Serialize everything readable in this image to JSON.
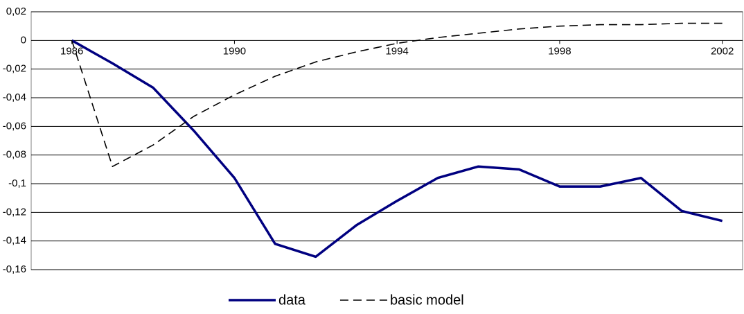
{
  "chart_data": {
    "type": "line",
    "x": [
      1986,
      1987,
      1988,
      1989,
      1990,
      1991,
      1992,
      1993,
      1994,
      1995,
      1996,
      1997,
      1998,
      1999,
      2000,
      2001,
      2002
    ],
    "series": [
      {
        "name": "data",
        "color": "#000080",
        "dash": false,
        "values": [
          0,
          -0.016,
          -0.033,
          -0.063,
          -0.096,
          -0.142,
          -0.151,
          -0.129,
          -0.112,
          -0.096,
          -0.088,
          -0.09,
          -0.102,
          -0.102,
          -0.096,
          -0.119,
          -0.126
        ]
      },
      {
        "name": "basic model",
        "color": "#000000",
        "dash": true,
        "values": [
          0,
          -0.088,
          -0.073,
          -0.053,
          -0.038,
          -0.025,
          -0.015,
          -0.008,
          -0.002,
          0.002,
          0.005,
          0.008,
          0.01,
          0.011,
          0.011,
          0.012,
          0.012
        ]
      }
    ],
    "xlim": [
      1985,
      2002.5
    ],
    "xticks": [
      1986,
      1990,
      1994,
      1998,
      2002
    ],
    "ylim": [
      -0.16,
      0.02
    ],
    "yticks": [
      {
        "value": 0.02,
        "label": "0,02"
      },
      0,
      {
        "value": -0.02,
        "label": "-0,02"
      },
      {
        "value": -0.04,
        "label": "-0,04"
      },
      {
        "value": -0.06,
        "label": "-0,06"
      },
      {
        "value": -0.08,
        "label": "-0,08"
      },
      {
        "value": -0.1,
        "label": "-0,1"
      },
      {
        "value": -0.12,
        "label": "-0,12"
      },
      {
        "value": -0.14,
        "label": "-0,14"
      },
      {
        "value": -0.16,
        "label": "-0,16"
      }
    ],
    "grid": true,
    "legend": "bottom"
  }
}
